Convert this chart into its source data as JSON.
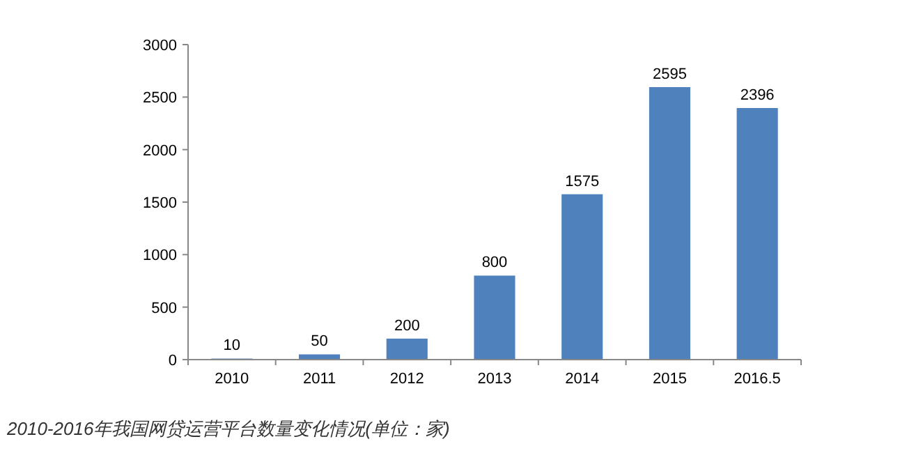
{
  "chart_data": {
    "type": "bar",
    "title": "2010-2016年我国网贷运营平台数量变化情况(单位：家)",
    "categories": [
      "2010",
      "2011",
      "2012",
      "2013",
      "2014",
      "2015",
      "2016.5"
    ],
    "values": [
      10,
      50,
      200,
      800,
      1575,
      2595,
      2396
    ],
    "color": "#4f81bd",
    "ylim": [
      0,
      3000
    ],
    "yticks": [
      0,
      500,
      1000,
      1500,
      2000,
      2500,
      3000
    ],
    "data_labels": true,
    "grid": false
  }
}
